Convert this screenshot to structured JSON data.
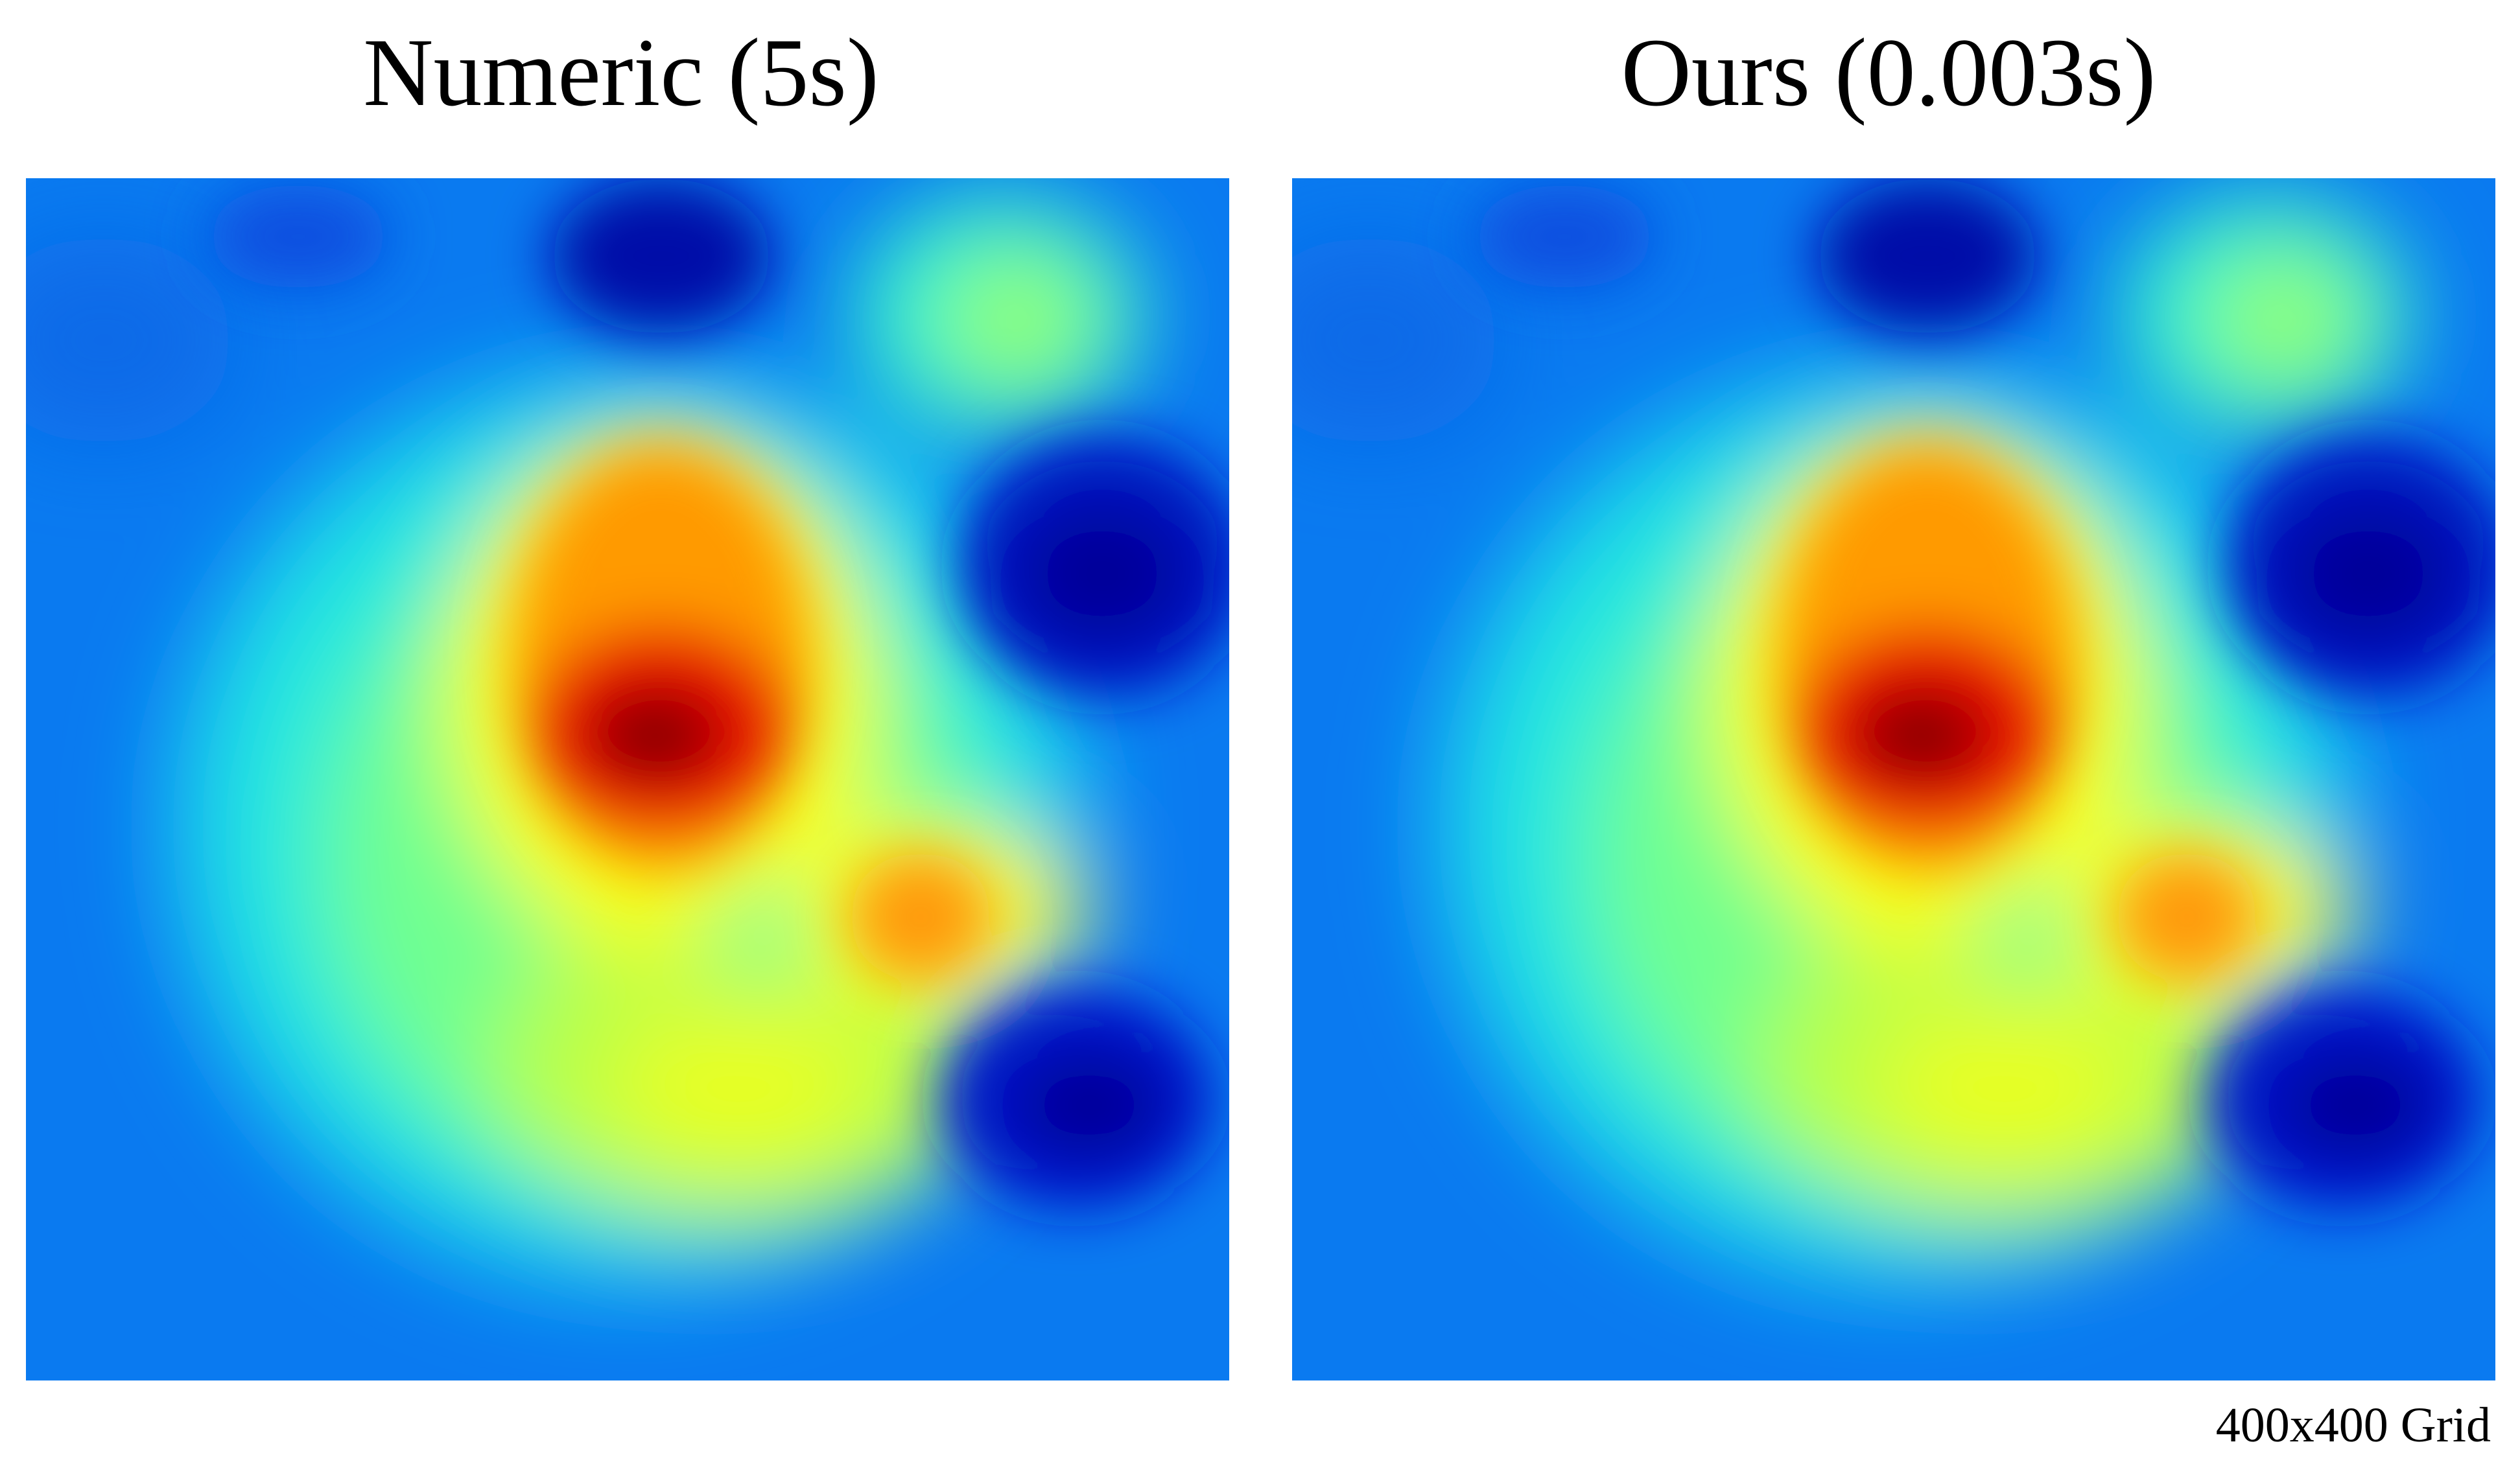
{
  "panels": [
    {
      "title": "Numeric (5s)"
    },
    {
      "title": "Ours (0.003s)"
    }
  ],
  "caption": "400x400 Grid"
}
